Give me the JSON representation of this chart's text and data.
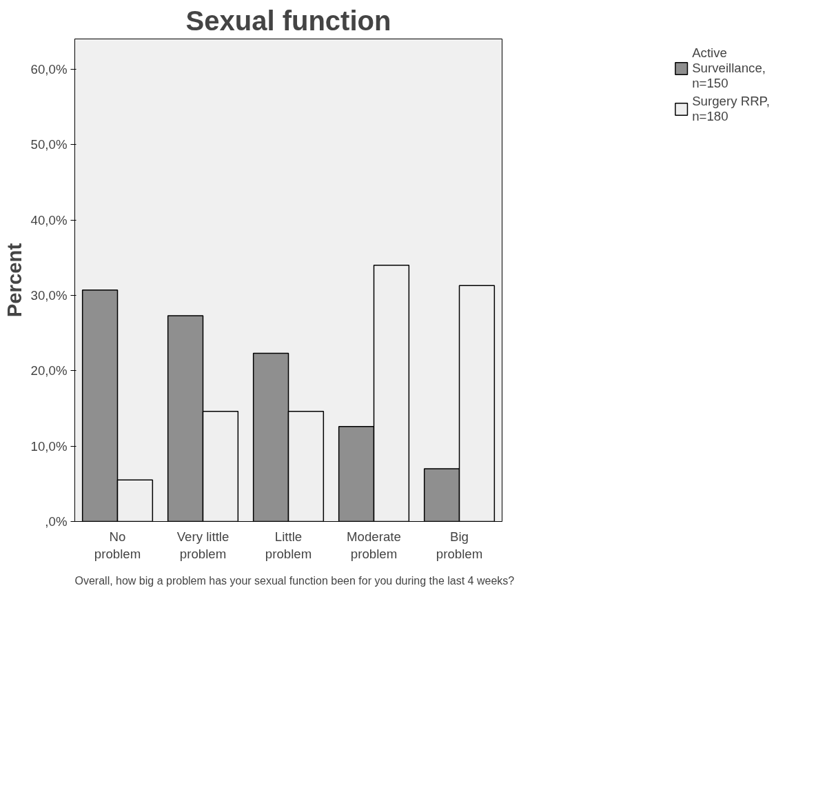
{
  "chart_data": {
    "type": "bar",
    "title": "Sexual function",
    "xlabel": "Overall, how big a problem has your sexual function been for you during the  last 4 weeks?",
    "ylabel": "Percent",
    "categories": [
      "No problem",
      "Very little problem",
      "Little problem",
      "Moderate problem",
      "Big problem"
    ],
    "series": [
      {
        "name": "Active Surveillance, n=150",
        "color": "#8f8f8f",
        "values": [
          30.7,
          27.3,
          22.3,
          12.6,
          7.0
        ]
      },
      {
        "name": "Surgery RRP, n=180",
        "color": "#efefef",
        "values": [
          5.5,
          14.6,
          14.6,
          34.0,
          31.3
        ]
      }
    ],
    "ylim": [
      0,
      64
    ],
    "yticks": [
      {
        "value": 0,
        "label": ",0%"
      },
      {
        "value": 10,
        "label": "10,0%"
      },
      {
        "value": 20,
        "label": "20,0%"
      },
      {
        "value": 30,
        "label": "30,0%"
      },
      {
        "value": 40,
        "label": "40,0%"
      },
      {
        "value": 50,
        "label": "50,0%"
      },
      {
        "value": 60,
        "label": "60,0%"
      }
    ],
    "grid": false,
    "legend": "right"
  }
}
